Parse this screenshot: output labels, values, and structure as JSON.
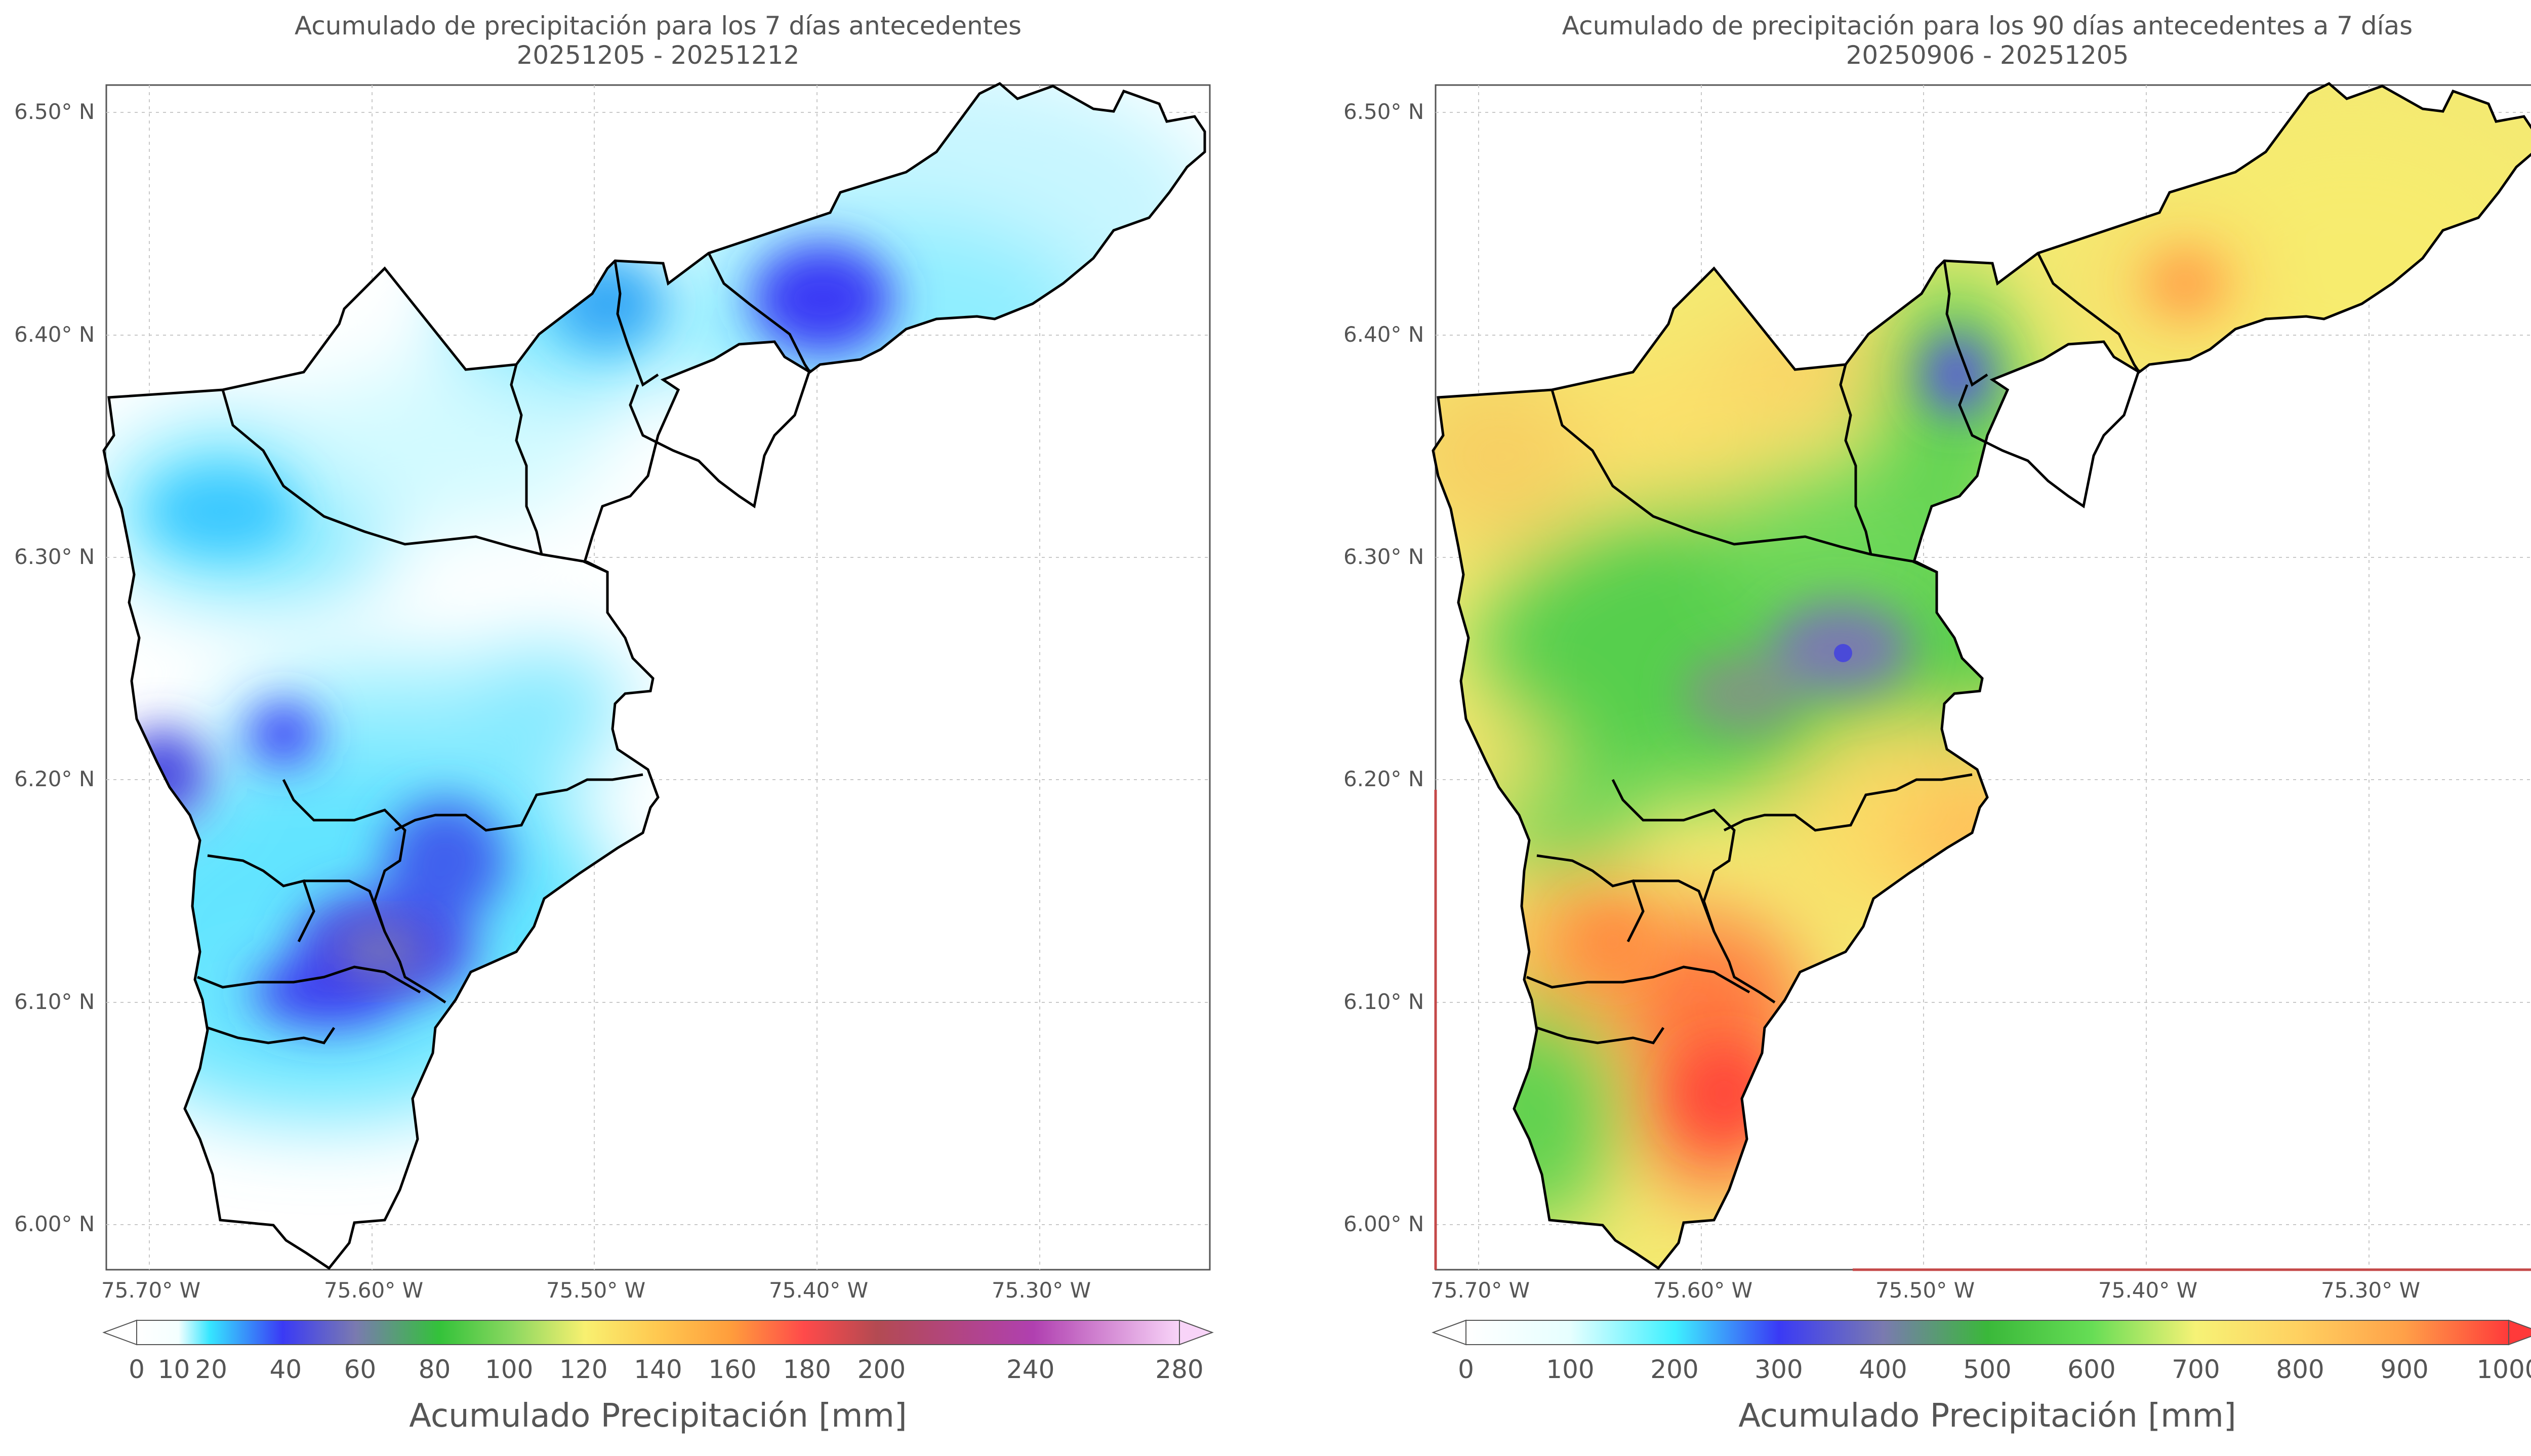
{
  "left_panel": {
    "title_line1": "Acumulado de precipitación para los 7 días antecedentes",
    "title_line2": "20251205 - 20251212",
    "colorbar_label": "Acumulado Precipitación [mm]",
    "colorbar_ticks": [
      "0",
      "10",
      "20",
      "40",
      "60",
      "80",
      "100",
      "120",
      "140",
      "160",
      "180",
      "200",
      "240",
      "280"
    ],
    "colorbar_range": [
      0,
      280
    ]
  },
  "right_panel": {
    "title_line1": "Acumulado de precipitación para los 90 días antecedentes a 7 días",
    "title_line2": "20250906 - 20251205",
    "colorbar_label": "Acumulado Precipitación [mm]",
    "colorbar_ticks": [
      "0",
      "100",
      "200",
      "300",
      "400",
      "500",
      "600",
      "700",
      "800",
      "900",
      "1000"
    ],
    "colorbar_range": [
      0,
      1000
    ]
  },
  "lat_labels": [
    "6.50° N",
    "6.40° N",
    "6.30° N",
    "6.20° N",
    "6.10° N",
    "6.00° N"
  ],
  "lon_labels": [
    "75.70° W",
    "75.60° W",
    "75.50° W",
    "75.40° W",
    "75.30° W"
  ],
  "colors": {
    "frame": "#555555",
    "grid": "#c8c8c8",
    "boundary": "#000000"
  }
}
